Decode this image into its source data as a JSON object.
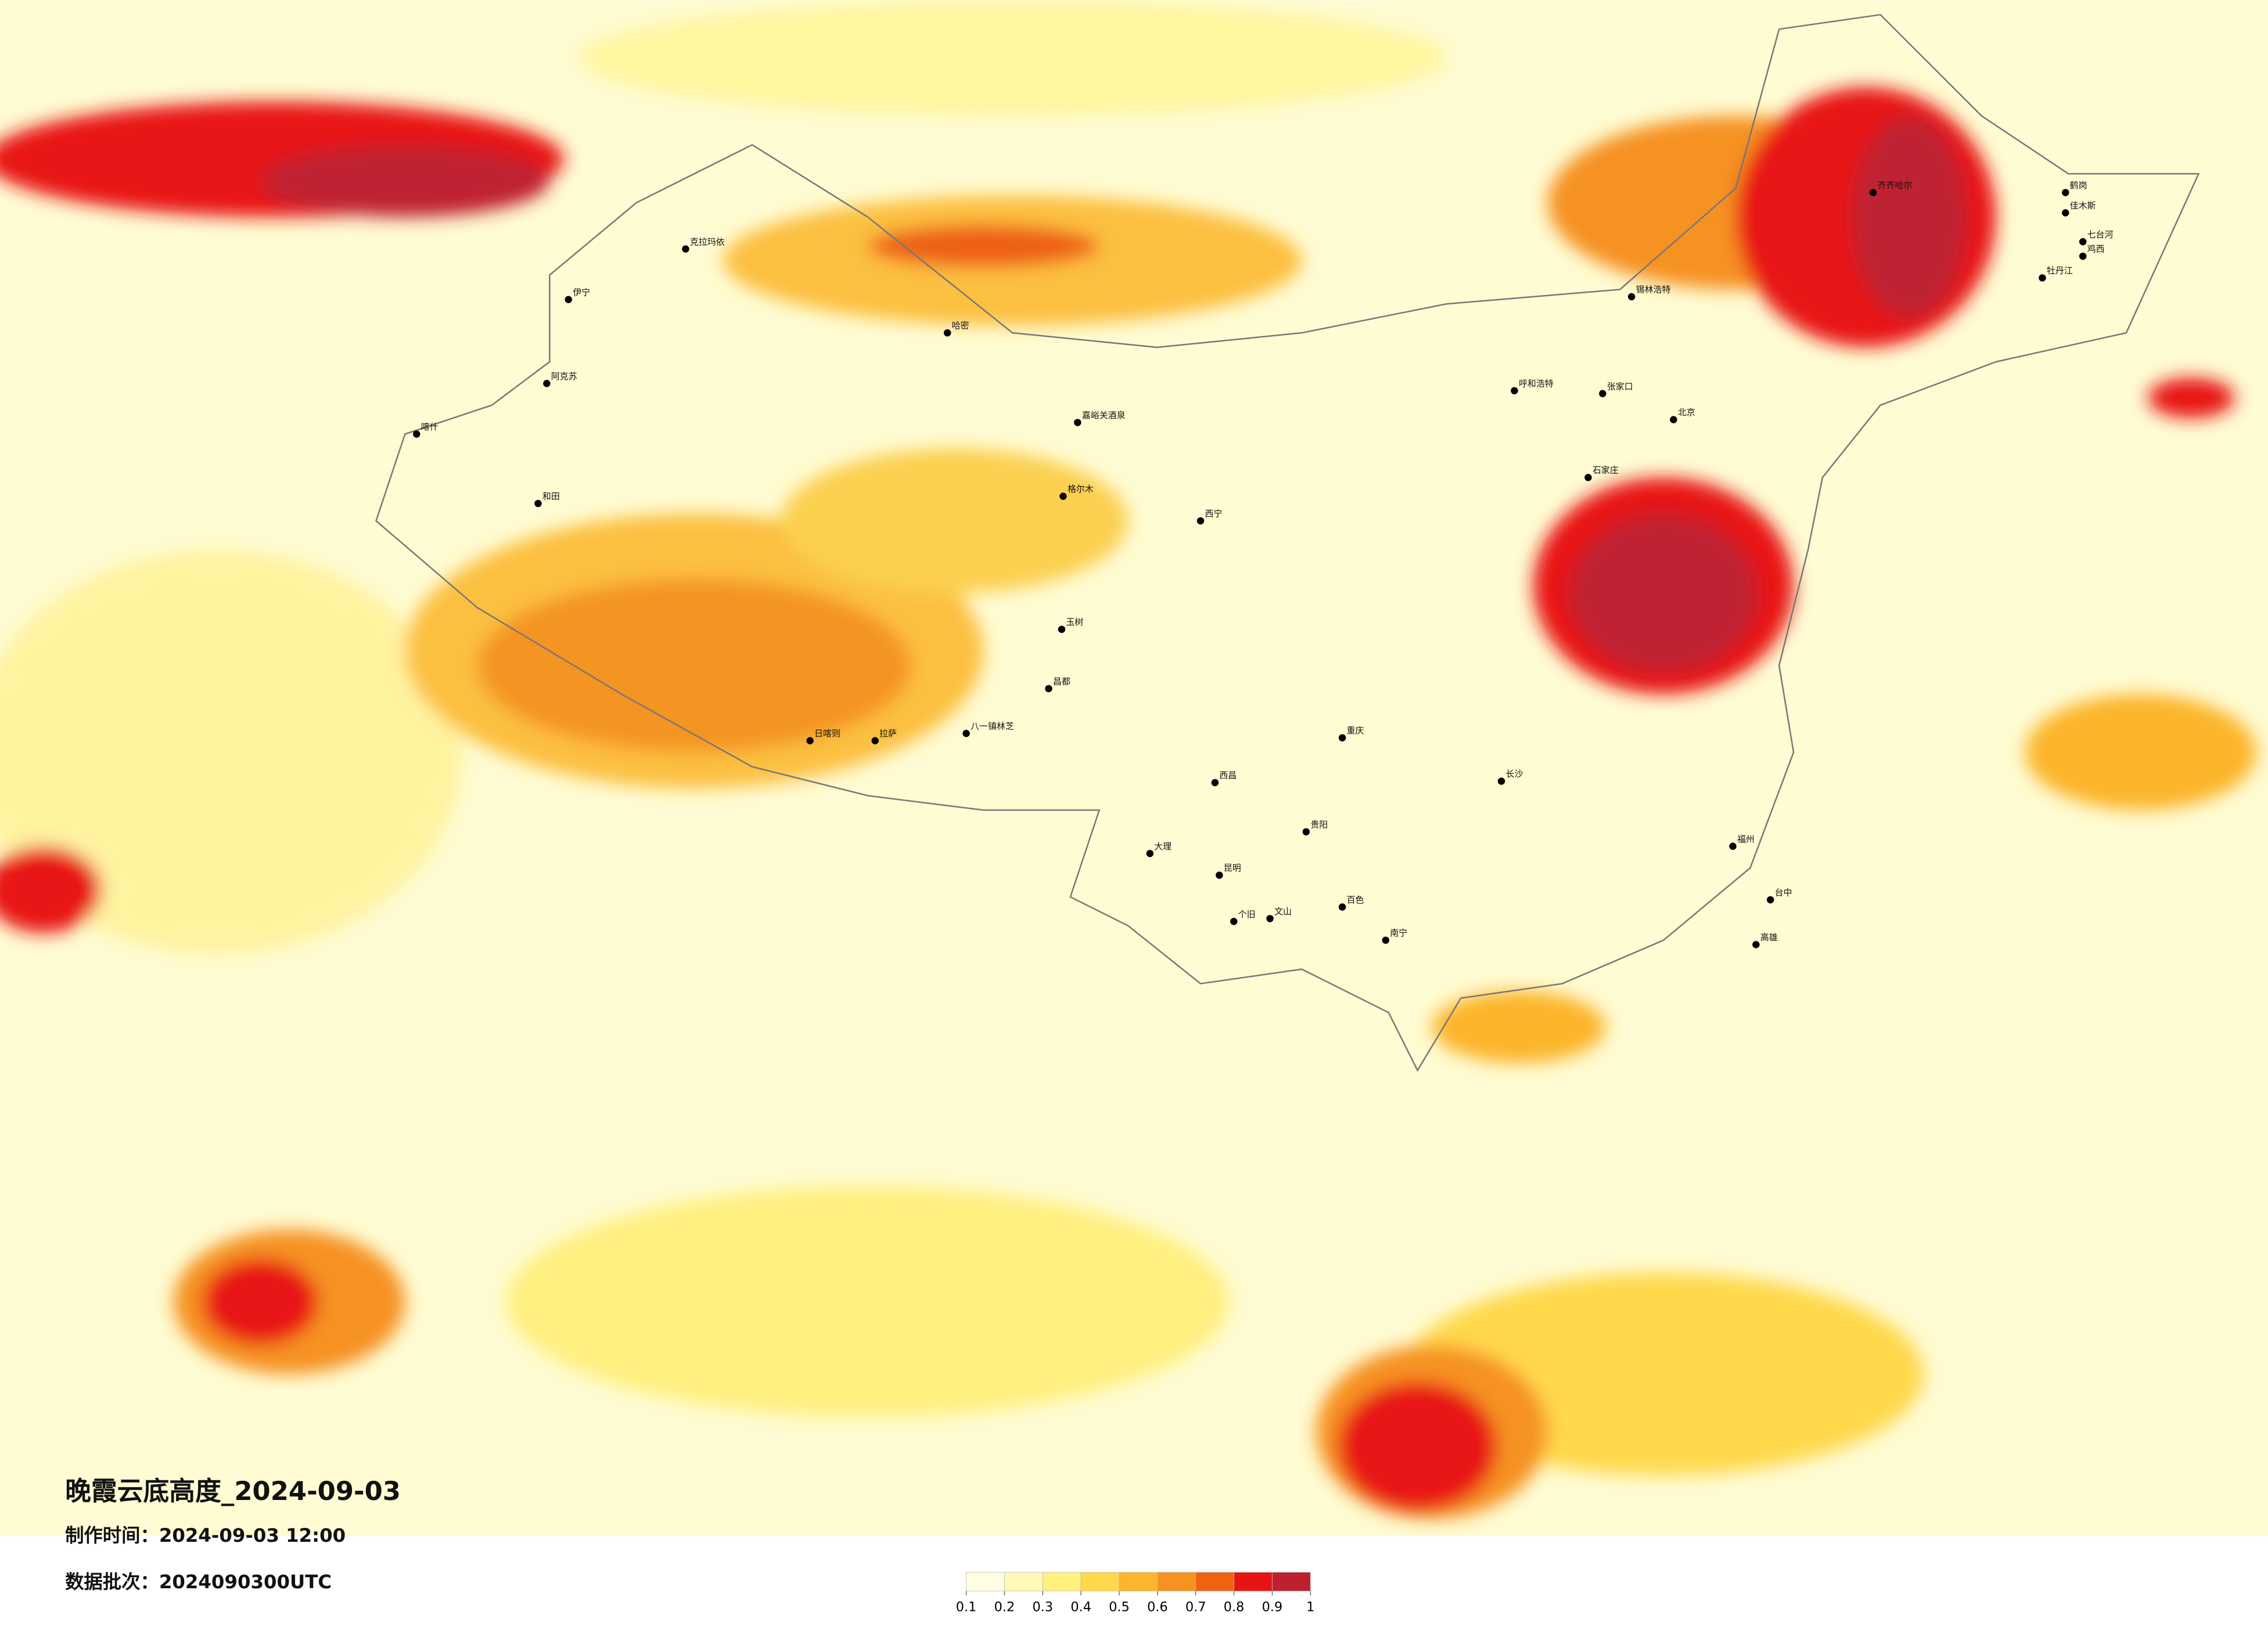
{
  "header": {
    "title": "晚霞云底高度_2024-09-03",
    "made_time": "制作时间：2024-09-03 12:00",
    "batch": "数据批次：2024090300UTC"
  },
  "colorbar": {
    "ticks": [
      0.1,
      0.2,
      0.3,
      0.4,
      0.5,
      0.6,
      0.7,
      0.8,
      0.9,
      1
    ],
    "colors": [
      "#fffde2",
      "#fff9b8",
      "#fff080",
      "#ffd84c",
      "#fcb52c",
      "#f69222",
      "#ef6212",
      "#e81414",
      "#bf2030"
    ]
  },
  "cities": [
    "克拉玛依",
    "伊宁",
    "阿克苏",
    "喀什",
    "和田",
    "哈密",
    "嘉峪关酒泉",
    "格尔木",
    "西宁",
    "玉树",
    "昌都",
    "日喀则",
    "拉萨",
    "八一镇林芝",
    "呼和浩特",
    "锡林浩特",
    "齐齐哈尔",
    "鹤岗",
    "佳木斯",
    "七台河",
    "鸡西",
    "牡丹江",
    "张家口",
    "北京",
    "石家庄",
    "重庆",
    "西昌",
    "大理",
    "昆明",
    "个旧",
    "文山",
    "百色",
    "贵阳",
    "南宁",
    "长沙",
    "福州",
    "台中",
    "高雄"
  ]
}
